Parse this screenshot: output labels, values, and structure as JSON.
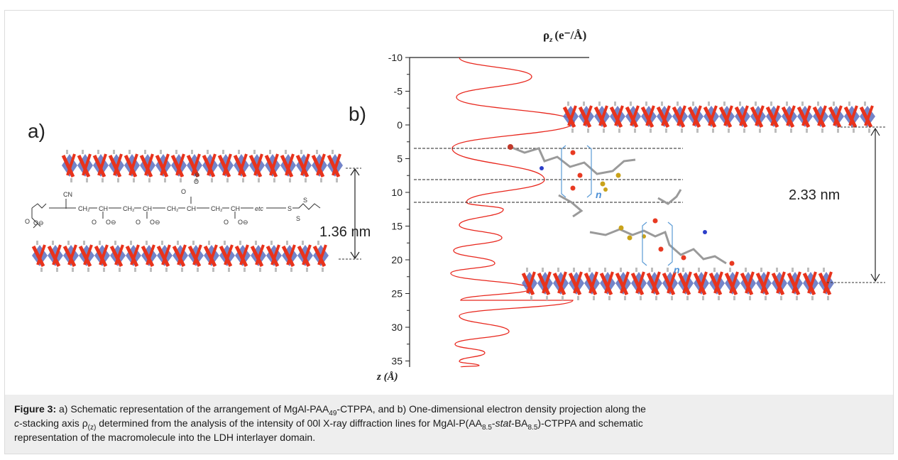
{
  "panel_a": {
    "label": "a)",
    "distance_label": "1.36 nm",
    "chem": {
      "cn": "CN",
      "ch2": "CH₂",
      "ch": "CH",
      "etc": "etc",
      "s": "S",
      "o": "O",
      "ominus": "O⊖",
      "ominus_top": "⊖"
    }
  },
  "panel_b": {
    "label": "b)",
    "distance_label": "2.33 nm",
    "n_label": "n",
    "axis_title_top": "ρ",
    "axis_title_top_sub": "z",
    "axis_title_top_unit": "(e⁻/Å)",
    "axis_title_left": "z (Å)",
    "ticks": [
      "-10",
      "-5",
      "0",
      "5",
      "10",
      "15",
      "20",
      "25",
      "30",
      "35"
    ]
  },
  "caption": {
    "figure_label": "Figure 3:",
    "part1": " a) Schematic representation of the arrangement of MgAl-PAA",
    "sub1": "49",
    "part2": "-CTPPA, and b) One-dimensional electron density projection along the",
    "c_italic": "c",
    "part3": "-stacking axis ρ",
    "sub2": "(z)",
    "part4": " determined from the analysis of the intensity of 00l X-ray diffraction lines for MgAl-P(AA",
    "sub3": "8.5",
    "part5": "-",
    "stat_italic": "stat",
    "part6": "-BA",
    "sub4": "8.5",
    "part7": ")-CTPPA and schematic",
    "part8": "representation of the macromolecule into the LDH interlayer domain."
  },
  "colors": {
    "density_curve": "#e8261c",
    "layer_red": "#e8331c",
    "layer_blue": "#5b6fc0",
    "layer_grey": "#bdbdbd",
    "n_label": "#4a8fd6",
    "caption_bg": "#eeeeee"
  }
}
